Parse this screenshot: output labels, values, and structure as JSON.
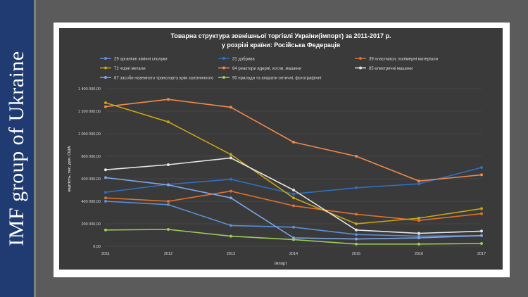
{
  "brand": {
    "text": "IMF group of Ukraine"
  },
  "chart_data": {
    "type": "line",
    "title_line1": "Товарна  структура зовнішньої торгівлі України(імпорт) за  2011-2017 р.",
    "title_line2": "у розрізі країни: Російська Федерація",
    "xlabel": "імпорт",
    "ylabel": "вартість, тис. дол. США",
    "categories": [
      "2011",
      "2012",
      "2013",
      "2014",
      "2015",
      "2016",
      "2017"
    ],
    "ylim": [
      0,
      1400000
    ],
    "yticks": [
      "0,00",
      "200 000,00",
      "400 000,00",
      "600 000,00",
      "800 000,00",
      "1 000 000,00",
      "1 200 000,00",
      "1 400 000,00"
    ],
    "legend_position": "top",
    "grid": true,
    "series": [
      {
        "name": "29 органiчнi хiмiчнi сполуки",
        "color": "#5b8fd8",
        "values": [
          400000,
          370000,
          185000,
          170000,
          105000,
          90000,
          95000
        ]
      },
      {
        "name": "31 добрива",
        "color": "#2f6fc0",
        "values": [
          480000,
          550000,
          595000,
          465000,
          520000,
          555000,
          700000
        ]
      },
      {
        "name": "39 пластмаси, полiмернi матерiали",
        "color": "#e0702e",
        "values": [
          430000,
          400000,
          490000,
          360000,
          285000,
          230000,
          290000
        ]
      },
      {
        "name": "72 чорнi метали",
        "color": "#c8a415",
        "values": [
          1275000,
          1105000,
          815000,
          430000,
          200000,
          250000,
          335000
        ]
      },
      {
        "name": "84 реактори ядерні, котли, машини",
        "color": "#f0894e",
        "values": [
          1240000,
          1305000,
          1235000,
          925000,
          800000,
          580000,
          635000
        ]
      },
      {
        "name": "85 електричнi машини",
        "color": "#e6e6e6",
        "values": [
          680000,
          725000,
          785000,
          500000,
          145000,
          115000,
          135000
        ]
      },
      {
        "name": "87 засоби наземного транспорту крiм залiзничного",
        "color": "#7fa6e6",
        "values": [
          610000,
          545000,
          430000,
          75000,
          65000,
          75000,
          95000
        ]
      },
      {
        "name": "90 прилади та апарати оптичнi, фотографiчнi",
        "color": "#9ccc5a",
        "values": [
          145000,
          150000,
          90000,
          60000,
          20000,
          20000,
          25000
        ]
      }
    ]
  }
}
